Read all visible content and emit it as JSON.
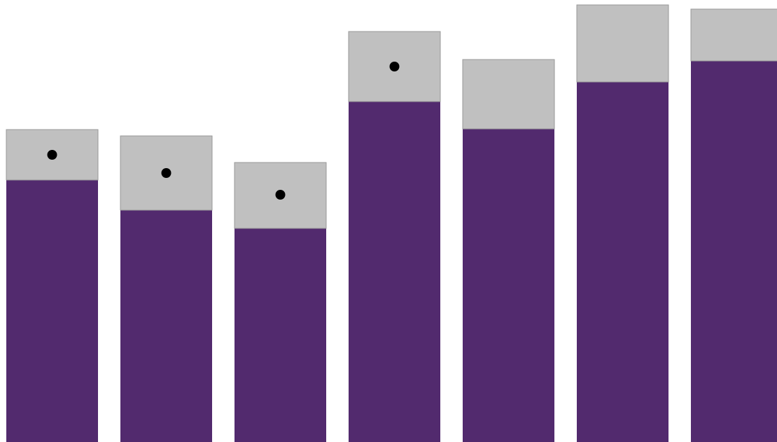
{
  "chart_data": {
    "type": "bar",
    "stacked": true,
    "categories": [
      "",
      "",
      "",
      "",
      "",
      "",
      ""
    ],
    "series": [
      {
        "values": [
          374,
          331,
          305,
          486,
          447,
          514,
          544
        ],
        "color": "#522a6e"
      },
      {
        "values": [
          72,
          106,
          94,
          100,
          99,
          110,
          74
        ],
        "color": "#c0c0c0"
      }
    ],
    "markers": [
      410,
      384,
      353,
      536,
      null,
      null,
      null
    ],
    "marker_color": "#000000",
    "bar_outline_color": "#999999",
    "ylim": [
      0,
      630
    ],
    "grid": false,
    "legend": false,
    "title": "",
    "xlabel": "",
    "ylabel": ""
  }
}
